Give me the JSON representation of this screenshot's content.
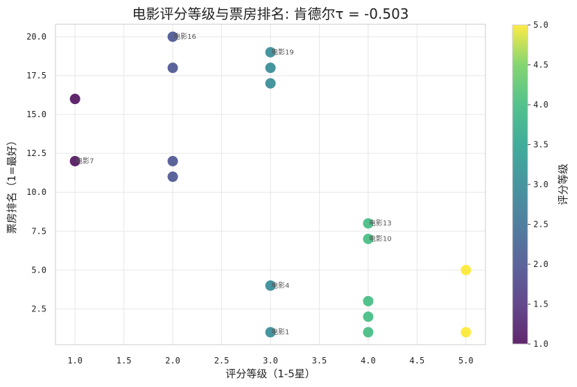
{
  "chart_data": {
    "type": "scatter",
    "title": "电影评分等级与票房排名: 肯德尔τ = -0.503",
    "xlabel": "评分等级（1-5星）",
    "ylabel": "票房排名（1=最好）",
    "xlim": [
      0.8,
      5.2
    ],
    "ylim": [
      0.2,
      20.8
    ],
    "xticks": [
      "1.0",
      "1.5",
      "2.0",
      "2.5",
      "3.0",
      "3.5",
      "4.0",
      "4.5",
      "5.0"
    ],
    "yticks": [
      "2.5",
      "5.0",
      "7.5",
      "10.0",
      "12.5",
      "15.0",
      "17.5",
      "20.0"
    ],
    "grid": true,
    "colormap": "viridis",
    "colorbar": {
      "label": "评分等级",
      "range": [
        1.0,
        5.0
      ],
      "ticks": [
        "1.0",
        "1.5",
        "2.0",
        "2.5",
        "3.0",
        "3.5",
        "4.0",
        "4.5",
        "5.0"
      ]
    },
    "points": [
      {
        "x": 1,
        "y": 16,
        "label": ""
      },
      {
        "x": 1,
        "y": 12,
        "label": "电影7"
      },
      {
        "x": 2,
        "y": 20,
        "label": "电影16"
      },
      {
        "x": 2,
        "y": 18,
        "label": ""
      },
      {
        "x": 2,
        "y": 12,
        "label": ""
      },
      {
        "x": 2,
        "y": 11,
        "label": ""
      },
      {
        "x": 3,
        "y": 19,
        "label": "电影19"
      },
      {
        "x": 3,
        "y": 18,
        "label": ""
      },
      {
        "x": 3,
        "y": 17,
        "label": ""
      },
      {
        "x": 3,
        "y": 4,
        "label": "电影4"
      },
      {
        "x": 3,
        "y": 1,
        "label": "电影1"
      },
      {
        "x": 4,
        "y": 8,
        "label": "电影13"
      },
      {
        "x": 4,
        "y": 7,
        "label": "电影10"
      },
      {
        "x": 4,
        "y": 3,
        "label": ""
      },
      {
        "x": 4,
        "y": 2,
        "label": ""
      },
      {
        "x": 4,
        "y": 1,
        "label": ""
      },
      {
        "x": 5,
        "y": 5,
        "label": ""
      },
      {
        "x": 5,
        "y": 1,
        "label": ""
      }
    ]
  }
}
